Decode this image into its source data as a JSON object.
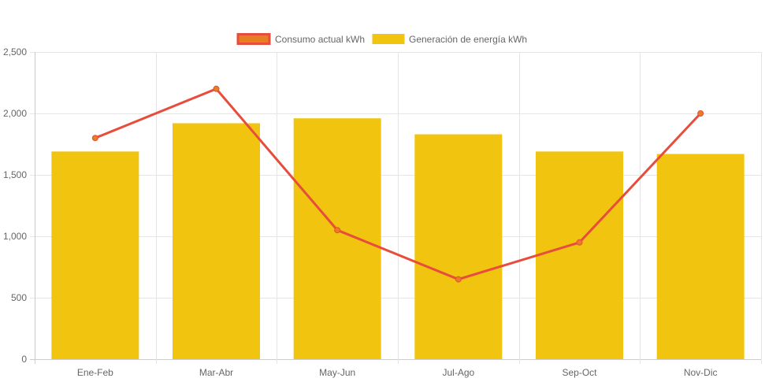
{
  "chart_data": {
    "type": "bar",
    "categories": [
      "Ene-Feb",
      "Mar-Abr",
      "May-Jun",
      "Jul-Ago",
      "Sep-Oct",
      "Nov-Dic"
    ],
    "series": [
      {
        "name": "Consumo actual kWh",
        "type": "line",
        "values": [
          1800,
          2200,
          1050,
          650,
          950,
          2000
        ],
        "color": "#e74c3c",
        "fill": "#e67e22"
      },
      {
        "name": "Generación de energía kWh",
        "type": "bar",
        "values": [
          1690,
          1920,
          1960,
          1830,
          1690,
          1670
        ],
        "color": "#f1c40f"
      }
    ],
    "ylim": [
      0,
      2500
    ],
    "yticks": [
      "0",
      "500",
      "1,000",
      "1,500",
      "2,000",
      "2,500"
    ],
    "ytick_values": [
      0,
      500,
      1000,
      1500,
      2000,
      2500
    ],
    "grid": true,
    "legend": "top"
  }
}
